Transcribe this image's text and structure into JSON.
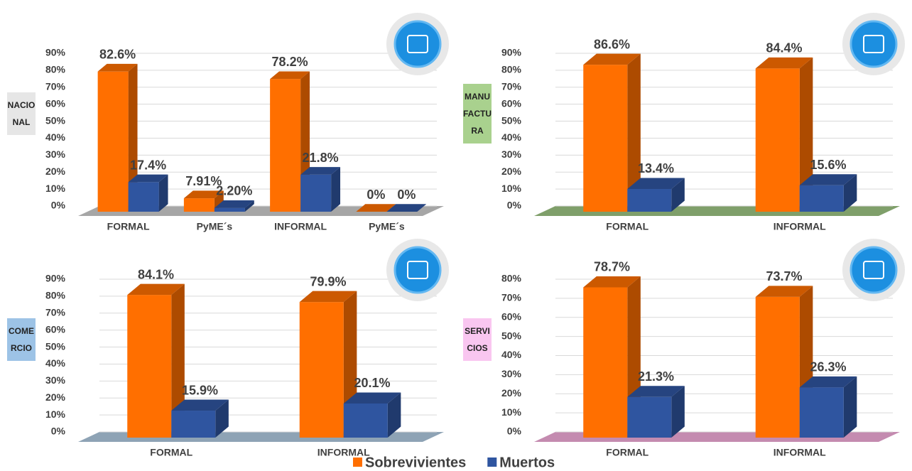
{
  "legend": [
    {
      "name": "Sobrevivientes",
      "color": "#ff6f00"
    },
    {
      "name": "Muertos",
      "color": "#2f55a0"
    }
  ],
  "chart_data": [
    {
      "type": "bar",
      "side_label": "NACIONAL",
      "label_color": "#e6e6e6",
      "floor_color": "#a6a6a6",
      "categories": [
        "FORMAL",
        "PyME´s",
        "INFORMAL",
        "PyME´s"
      ],
      "series": [
        {
          "values": [
            82.6,
            7.91,
            78.2,
            0
          ],
          "value_labels": [
            "82.6%",
            "7.91%",
            "78.2%",
            "0%"
          ]
        },
        {
          "values": [
            17.4,
            2.2,
            21.8,
            0
          ],
          "value_labels": [
            "17.4%",
            "2.20%",
            "21.8%",
            "0%"
          ]
        }
      ],
      "ylim": [
        0,
        90
      ],
      "yticks": [
        {
          "value": 0,
          "label": "0%"
        },
        {
          "value": 10,
          "label": "10%"
        },
        {
          "value": 20,
          "label": "20%"
        },
        {
          "value": 30,
          "label": "30%"
        },
        {
          "value": 40,
          "label": "40%"
        },
        {
          "value": 50,
          "label": "50%"
        },
        {
          "value": 60,
          "label": "60%"
        },
        {
          "value": 70,
          "label": "70%"
        },
        {
          "value": 80,
          "label": "80%"
        },
        {
          "value": 90,
          "label": "90%"
        }
      ]
    },
    {
      "type": "bar",
      "side_label": "MANUFACTURA",
      "label_color": "#a9d18e",
      "floor_color": "#7f9f6a",
      "categories": [
        "FORMAL",
        "INFORMAL"
      ],
      "series": [
        {
          "values": [
            86.6,
            84.4
          ],
          "value_labels": [
            "86.6%",
            "84.4%"
          ]
        },
        {
          "values": [
            13.4,
            15.6
          ],
          "value_labels": [
            "13.4%",
            "15.6%"
          ]
        }
      ],
      "ylim": [
        0,
        90
      ],
      "yticks": [
        {
          "value": 0,
          "label": "0%"
        },
        {
          "value": 10,
          "label": "10%"
        },
        {
          "value": 20,
          "label": "20%"
        },
        {
          "value": 30,
          "label": "30%"
        },
        {
          "value": 40,
          "label": "40%"
        },
        {
          "value": 50,
          "label": "50%"
        },
        {
          "value": 60,
          "label": "60%"
        },
        {
          "value": 70,
          "label": "70%"
        },
        {
          "value": 80,
          "label": "80%"
        },
        {
          "value": 90,
          "label": "90%"
        }
      ]
    },
    {
      "type": "bar",
      "side_label": "COMERCIO",
      "label_color": "#9dc3e6",
      "floor_color": "#8ea3b5",
      "categories": [
        "FORMAL",
        "INFORMAL"
      ],
      "series": [
        {
          "values": [
            84.1,
            79.9
          ],
          "value_labels": [
            "84.1%",
            "79.9%"
          ]
        },
        {
          "values": [
            15.9,
            20.1
          ],
          "value_labels": [
            "15.9%",
            "20.1%"
          ]
        }
      ],
      "ylim": [
        0,
        90
      ],
      "yticks": [
        {
          "value": 0,
          "label": "0%"
        },
        {
          "value": 10,
          "label": "10%"
        },
        {
          "value": 20,
          "label": "20%"
        },
        {
          "value": 30,
          "label": "30%"
        },
        {
          "value": 40,
          "label": "40%"
        },
        {
          "value": 50,
          "label": "50%"
        },
        {
          "value": 60,
          "label": "60%"
        },
        {
          "value": 70,
          "label": "70%"
        },
        {
          "value": 80,
          "label": "80%"
        },
        {
          "value": 90,
          "label": "90%"
        }
      ]
    },
    {
      "type": "bar",
      "side_label": "SERVICIOS",
      "label_color": "#f9c6f0",
      "floor_color": "#c48bb0",
      "categories": [
        "FORMAL",
        "INFORMAL"
      ],
      "series": [
        {
          "values": [
            78.7,
            73.7
          ],
          "value_labels": [
            "78.7%",
            "73.7%"
          ]
        },
        {
          "values": [
            21.3,
            26.3
          ],
          "value_labels": [
            "21.3%",
            "26.3%"
          ]
        }
      ],
      "ylim": [
        0,
        80
      ],
      "yticks": [
        {
          "value": 0,
          "label": "0%"
        },
        {
          "value": 10,
          "label": "10%"
        },
        {
          "value": 20,
          "label": "20%"
        },
        {
          "value": 30,
          "label": "30%"
        },
        {
          "value": 40,
          "label": "40%"
        },
        {
          "value": 50,
          "label": "50%"
        },
        {
          "value": 60,
          "label": "60%"
        },
        {
          "value": 70,
          "label": "70%"
        },
        {
          "value": 80,
          "label": "80%"
        }
      ]
    }
  ]
}
